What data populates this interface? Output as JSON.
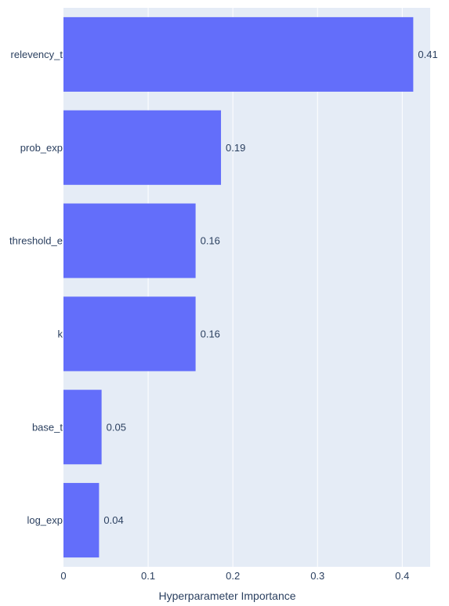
{
  "chart_data": {
    "type": "bar",
    "orientation": "horizontal",
    "title": "",
    "xlabel": "Hyperparameter Importance",
    "ylabel": "",
    "categories": [
      "relevency_t",
      "prob_exp",
      "threshold_e",
      "k",
      "base_t",
      "log_exp"
    ],
    "values": [
      0.413,
      0.186,
      0.156,
      0.156,
      0.045,
      0.042
    ],
    "value_labels": [
      "0.41",
      "0.19",
      "0.16",
      "0.16",
      "0.05",
      "0.04"
    ],
    "xlim": [
      0,
      0.433
    ],
    "xticks": [
      0,
      0.1,
      0.2,
      0.3,
      0.4
    ],
    "xtick_labels": [
      "0",
      "0.1",
      "0.2",
      "0.3",
      "0.4"
    ],
    "grid": true,
    "legend": "none",
    "colors": {
      "bar": "#636efa",
      "plot_background": "#e5ecf6",
      "grid": "#ffffff",
      "text": "#2a3f5f"
    }
  }
}
